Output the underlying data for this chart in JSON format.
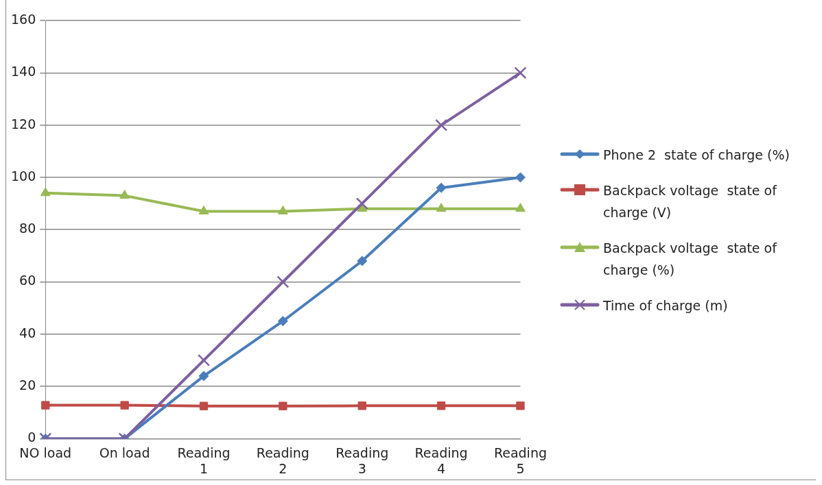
{
  "chart_data": {
    "type": "line",
    "categories": [
      "NO load",
      "On load",
      "Reading 1",
      "Reading 2",
      "Reading 3",
      "Reading 4",
      "Reading 5"
    ],
    "series": [
      {
        "name": "Phone 2  state of charge (%)",
        "color": "#4a7ebb",
        "marker": "diamond",
        "values": [
          0,
          0,
          24,
          45,
          68,
          96,
          100
        ]
      },
      {
        "name": "Backpack voltage  state of charge (V)",
        "color": "#be4b48",
        "marker": "square",
        "values": [
          12.8,
          12.8,
          12.5,
          12.5,
          12.6,
          12.6,
          12.6
        ]
      },
      {
        "name": "Backpack voltage  state of charge (%)",
        "color": "#98b954",
        "marker": "triangle",
        "values": [
          94,
          93,
          87,
          87,
          88,
          88,
          88
        ]
      },
      {
        "name": "Time of charge (m)",
        "color": "#7d60a0",
        "marker": "cross",
        "values": [
          0,
          0,
          30,
          60,
          90,
          120,
          140
        ]
      }
    ],
    "ylim": [
      0,
      160
    ],
    "yticks": [
      0,
      20,
      40,
      60,
      80,
      100,
      120,
      140,
      160
    ],
    "grid": "y",
    "legend": "right"
  }
}
